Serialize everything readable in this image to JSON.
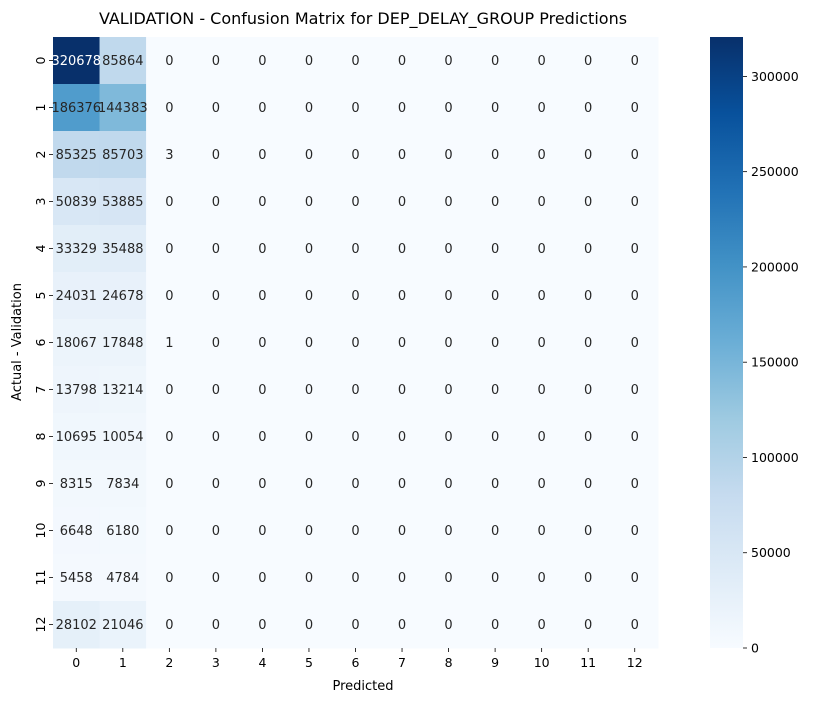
{
  "chart_data": {
    "type": "heatmap",
    "title": "VALIDATION - Confusion Matrix for DEP_DELAY_GROUP Predictions",
    "xlabel": "Predicted",
    "ylabel": "Actual - Validation",
    "x_categories": [
      "0",
      "1",
      "2",
      "3",
      "4",
      "5",
      "6",
      "7",
      "8",
      "9",
      "10",
      "11",
      "12"
    ],
    "y_categories": [
      "0",
      "1",
      "2",
      "3",
      "4",
      "5",
      "6",
      "7",
      "8",
      "9",
      "10",
      "11",
      "12"
    ],
    "values": [
      [
        320678,
        85864,
        0,
        0,
        0,
        0,
        0,
        0,
        0,
        0,
        0,
        0,
        0
      ],
      [
        186376,
        144383,
        0,
        0,
        0,
        0,
        0,
        0,
        0,
        0,
        0,
        0,
        0
      ],
      [
        85325,
        85703,
        3,
        0,
        0,
        0,
        0,
        0,
        0,
        0,
        0,
        0,
        0
      ],
      [
        50839,
        53885,
        0,
        0,
        0,
        0,
        0,
        0,
        0,
        0,
        0,
        0,
        0
      ],
      [
        33329,
        35488,
        0,
        0,
        0,
        0,
        0,
        0,
        0,
        0,
        0,
        0,
        0
      ],
      [
        24031,
        24678,
        0,
        0,
        0,
        0,
        0,
        0,
        0,
        0,
        0,
        0,
        0
      ],
      [
        18067,
        17848,
        1,
        0,
        0,
        0,
        0,
        0,
        0,
        0,
        0,
        0,
        0
      ],
      [
        13798,
        13214,
        0,
        0,
        0,
        0,
        0,
        0,
        0,
        0,
        0,
        0,
        0
      ],
      [
        10695,
        10054,
        0,
        0,
        0,
        0,
        0,
        0,
        0,
        0,
        0,
        0,
        0
      ],
      [
        8315,
        7834,
        0,
        0,
        0,
        0,
        0,
        0,
        0,
        0,
        0,
        0,
        0
      ],
      [
        6648,
        6180,
        0,
        0,
        0,
        0,
        0,
        0,
        0,
        0,
        0,
        0,
        0
      ],
      [
        5458,
        4784,
        0,
        0,
        0,
        0,
        0,
        0,
        0,
        0,
        0,
        0,
        0
      ],
      [
        28102,
        21046,
        0,
        0,
        0,
        0,
        0,
        0,
        0,
        0,
        0,
        0,
        0
      ]
    ],
    "colormap": "Blues",
    "colorbar": {
      "ticks": [
        0,
        50000,
        100000,
        150000,
        200000,
        250000,
        300000
      ],
      "range": [
        0,
        320678
      ]
    },
    "annotation_colors": {
      "dark": "#262626",
      "light": "#ffffff"
    }
  }
}
